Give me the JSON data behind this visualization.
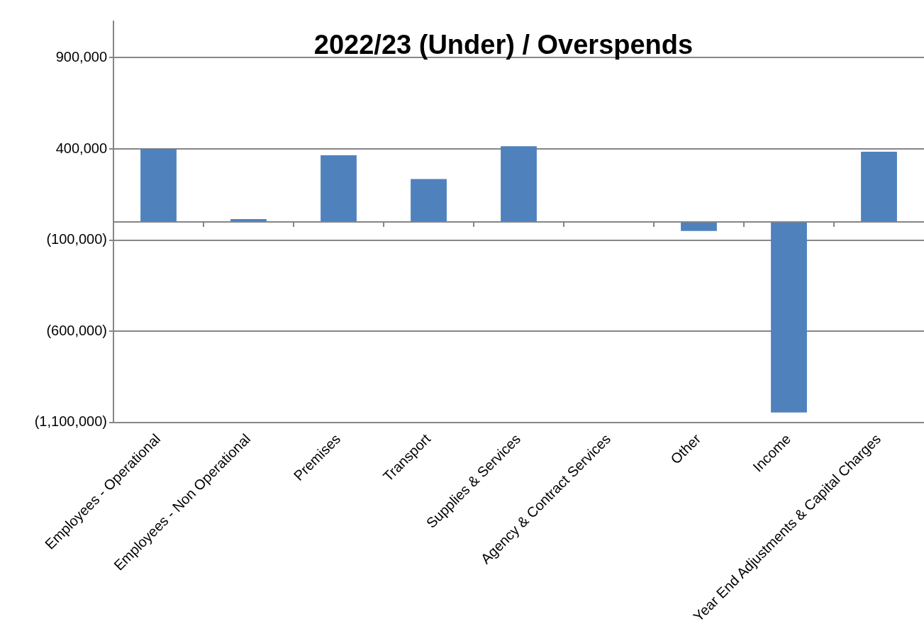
{
  "chart_data": {
    "type": "bar",
    "title": "2022/23 (Under) / Overspends",
    "categories": [
      "Employees - Operational",
      "Employees - Non Operational",
      "Premises",
      "Transport",
      "Supplies & Services",
      "Agency & Contract Services",
      "Other",
      "Income",
      "Year End Adjustments & Capital Charges"
    ],
    "values": [
      400000,
      15000,
      365000,
      235000,
      415000,
      4000,
      -50000,
      -1045000,
      385000
    ],
    "color": "#4f81bd",
    "ylim": [
      -1100000,
      1100000
    ],
    "yticks": [
      {
        "value": -1100000,
        "label": "(1,100,000)"
      },
      {
        "value": -600000,
        "label": "(600,000)"
      },
      {
        "value": -100000,
        "label": "(100,000)"
      },
      {
        "value": 400000,
        "label": "400,000"
      },
      {
        "value": 900000,
        "label": "900,000"
      }
    ],
    "grid": "y",
    "legend": false
  }
}
